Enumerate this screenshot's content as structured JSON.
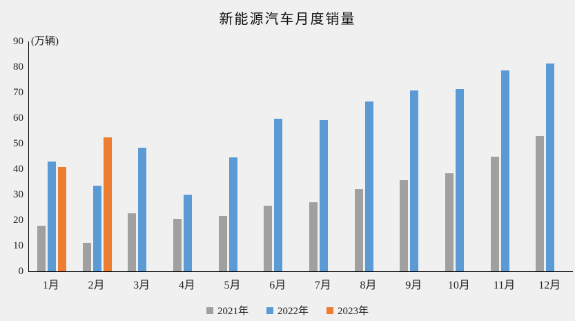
{
  "chart_data": {
    "type": "bar",
    "title": "新能源汽车月度销量",
    "unit_label": "(万辆)",
    "categories": [
      "1月",
      "2月",
      "3月",
      "4月",
      "5月",
      "6月",
      "7月",
      "8月",
      "9月",
      "10月",
      "11月",
      "12月"
    ],
    "series": [
      {
        "name": "2021年",
        "color": "#a0a0a0",
        "values": [
          17.9,
          11.0,
          22.6,
          20.6,
          21.7,
          25.6,
          27.1,
          32.1,
          35.7,
          38.3,
          45.0,
          53.1
        ]
      },
      {
        "name": "2022年",
        "color": "#5b9bd5",
        "values": [
          43.1,
          33.4,
          48.4,
          29.9,
          44.7,
          59.6,
          59.3,
          66.6,
          70.8,
          71.4,
          78.6,
          81.4
        ]
      },
      {
        "name": "2023年",
        "color": "#ed7d31",
        "values": [
          40.8,
          52.5,
          null,
          null,
          null,
          null,
          null,
          null,
          null,
          null,
          null,
          null
        ]
      }
    ],
    "xlabel": "",
    "ylabel": "",
    "ylim": [
      0,
      90
    ],
    "y_tick_step": 10,
    "grid": false,
    "legend_position": "bottom"
  },
  "colors": {
    "background": "#f0f0f0",
    "axis": "#000000",
    "text": "#222222"
  }
}
